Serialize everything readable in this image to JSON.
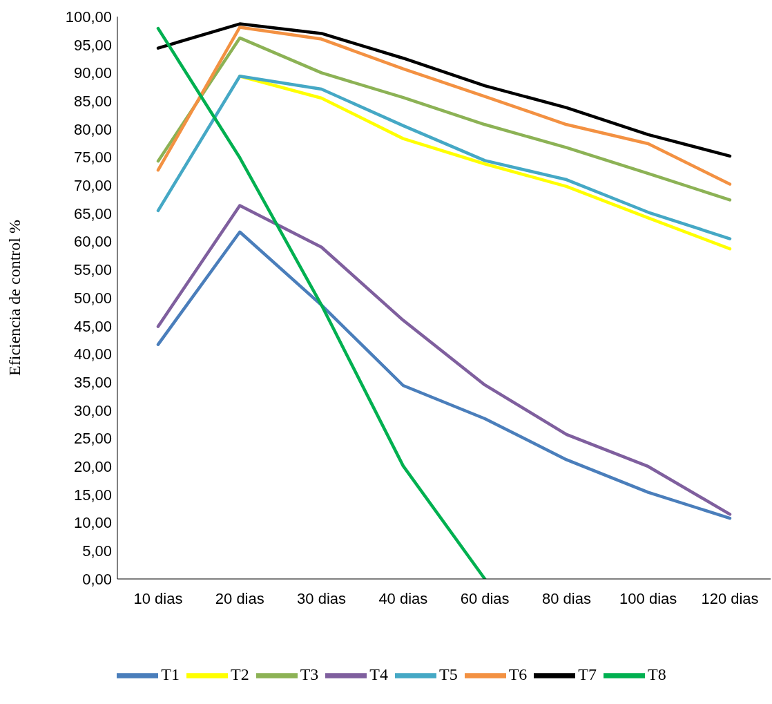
{
  "chart_data": {
    "type": "line",
    "ylabel": "Eficiencia de control %",
    "categories": [
      "10 dias",
      "20 dias",
      "30 dias",
      "40 dias",
      "60 dias",
      "80 dias",
      "100 dias",
      "120 dias"
    ],
    "series": [
      {
        "name": "T1",
        "color": "#4a7ebb",
        "values": [
          41.7,
          61.7,
          48.7,
          34.4,
          28.5,
          21.2,
          15.4,
          10.8
        ]
      },
      {
        "name": "T2",
        "color": "#ffff00",
        "values": [
          null,
          89.4,
          85.5,
          78.3,
          73.8,
          69.8,
          64.2,
          58.7
        ]
      },
      {
        "name": "T3",
        "color": "#8cb255",
        "values": [
          74.3,
          96.2,
          90.0,
          85.6,
          80.8,
          76.7,
          72.1,
          67.4
        ]
      },
      {
        "name": "T4",
        "color": "#7f5f9e",
        "values": [
          44.9,
          66.4,
          59.0,
          46.0,
          34.5,
          25.7,
          20.0,
          11.5
        ]
      },
      {
        "name": "T5",
        "color": "#45a8c5",
        "values": [
          65.5,
          89.4,
          87.1,
          80.6,
          74.4,
          71.0,
          65.2,
          60.5
        ]
      },
      {
        "name": "T6",
        "color": "#f39142",
        "values": [
          72.7,
          98.1,
          96.0,
          90.7,
          85.8,
          80.8,
          77.4,
          70.2
        ]
      },
      {
        "name": "T7",
        "color": "#000000",
        "values": [
          94.4,
          98.7,
          97.0,
          92.6,
          87.7,
          83.8,
          79.0,
          75.2
        ]
      },
      {
        "name": "T8",
        "color": "#00b050",
        "values": [
          97.9,
          74.9,
          48.7,
          20.1,
          0,
          null,
          null,
          null
        ]
      }
    ],
    "ylim": [
      0,
      100
    ],
    "yticks": [
      {
        "value": 0,
        "label": "0,00"
      },
      {
        "value": 5,
        "label": "5,00"
      },
      {
        "value": 10,
        "label": "10,00"
      },
      {
        "value": 15,
        "label": "15,00"
      },
      {
        "value": 20,
        "label": "20,00"
      },
      {
        "value": 25,
        "label": "25,00"
      },
      {
        "value": 30,
        "label": "30,00"
      },
      {
        "value": 35,
        "label": "35,00"
      },
      {
        "value": 40,
        "label": "40,00"
      },
      {
        "value": 45,
        "label": "45,00"
      },
      {
        "value": 50,
        "label": "50,00"
      },
      {
        "value": 55,
        "label": "55,00"
      },
      {
        "value": 60,
        "label": "60,00"
      },
      {
        "value": 65,
        "label": "65,00"
      },
      {
        "value": 70,
        "label": "70,00"
      },
      {
        "value": 75,
        "label": "75,00"
      },
      {
        "value": 80,
        "label": "80,00"
      },
      {
        "value": 85,
        "label": "85,00"
      },
      {
        "value": 90,
        "label": "90,00"
      },
      {
        "value": 95,
        "label": "95,00"
      },
      {
        "value": 100,
        "label": "100,00"
      }
    ],
    "grid": false,
    "legend": "bottom",
    "marker": "none",
    "line_style": "solid"
  }
}
